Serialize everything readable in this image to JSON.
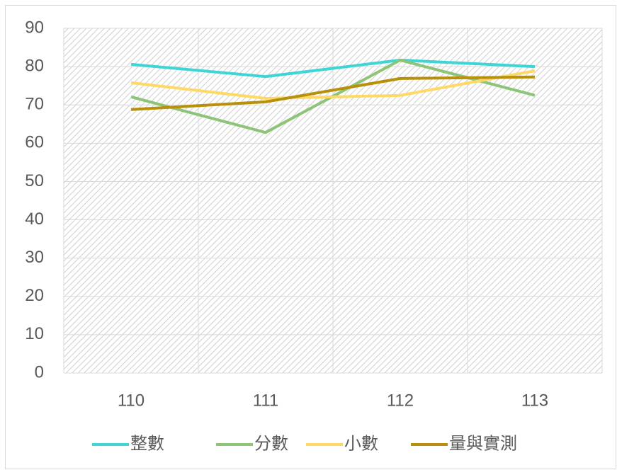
{
  "chart_data": {
    "type": "line",
    "categories": [
      "110",
      "111",
      "112",
      "113"
    ],
    "series": [
      {
        "name": "整數",
        "color": "#3fd5d5",
        "values": [
          80.6,
          77.4,
          81.7,
          80.0
        ]
      },
      {
        "name": "分數",
        "color": "#8dc477",
        "values": [
          72.1,
          62.8,
          81.7,
          72.5
        ]
      },
      {
        "name": "小數",
        "color": "#ffd966",
        "values": [
          75.8,
          71.7,
          72.5,
          78.9
        ]
      },
      {
        "name": "量與實測",
        "color": "#b8900a",
        "values": [
          68.8,
          70.8,
          76.9,
          77.3
        ]
      }
    ],
    "ylim": [
      0,
      90
    ],
    "yticks": [
      0,
      10,
      20,
      30,
      40,
      50,
      60,
      70,
      80,
      90
    ],
    "grid": true,
    "legend": "bottom"
  }
}
